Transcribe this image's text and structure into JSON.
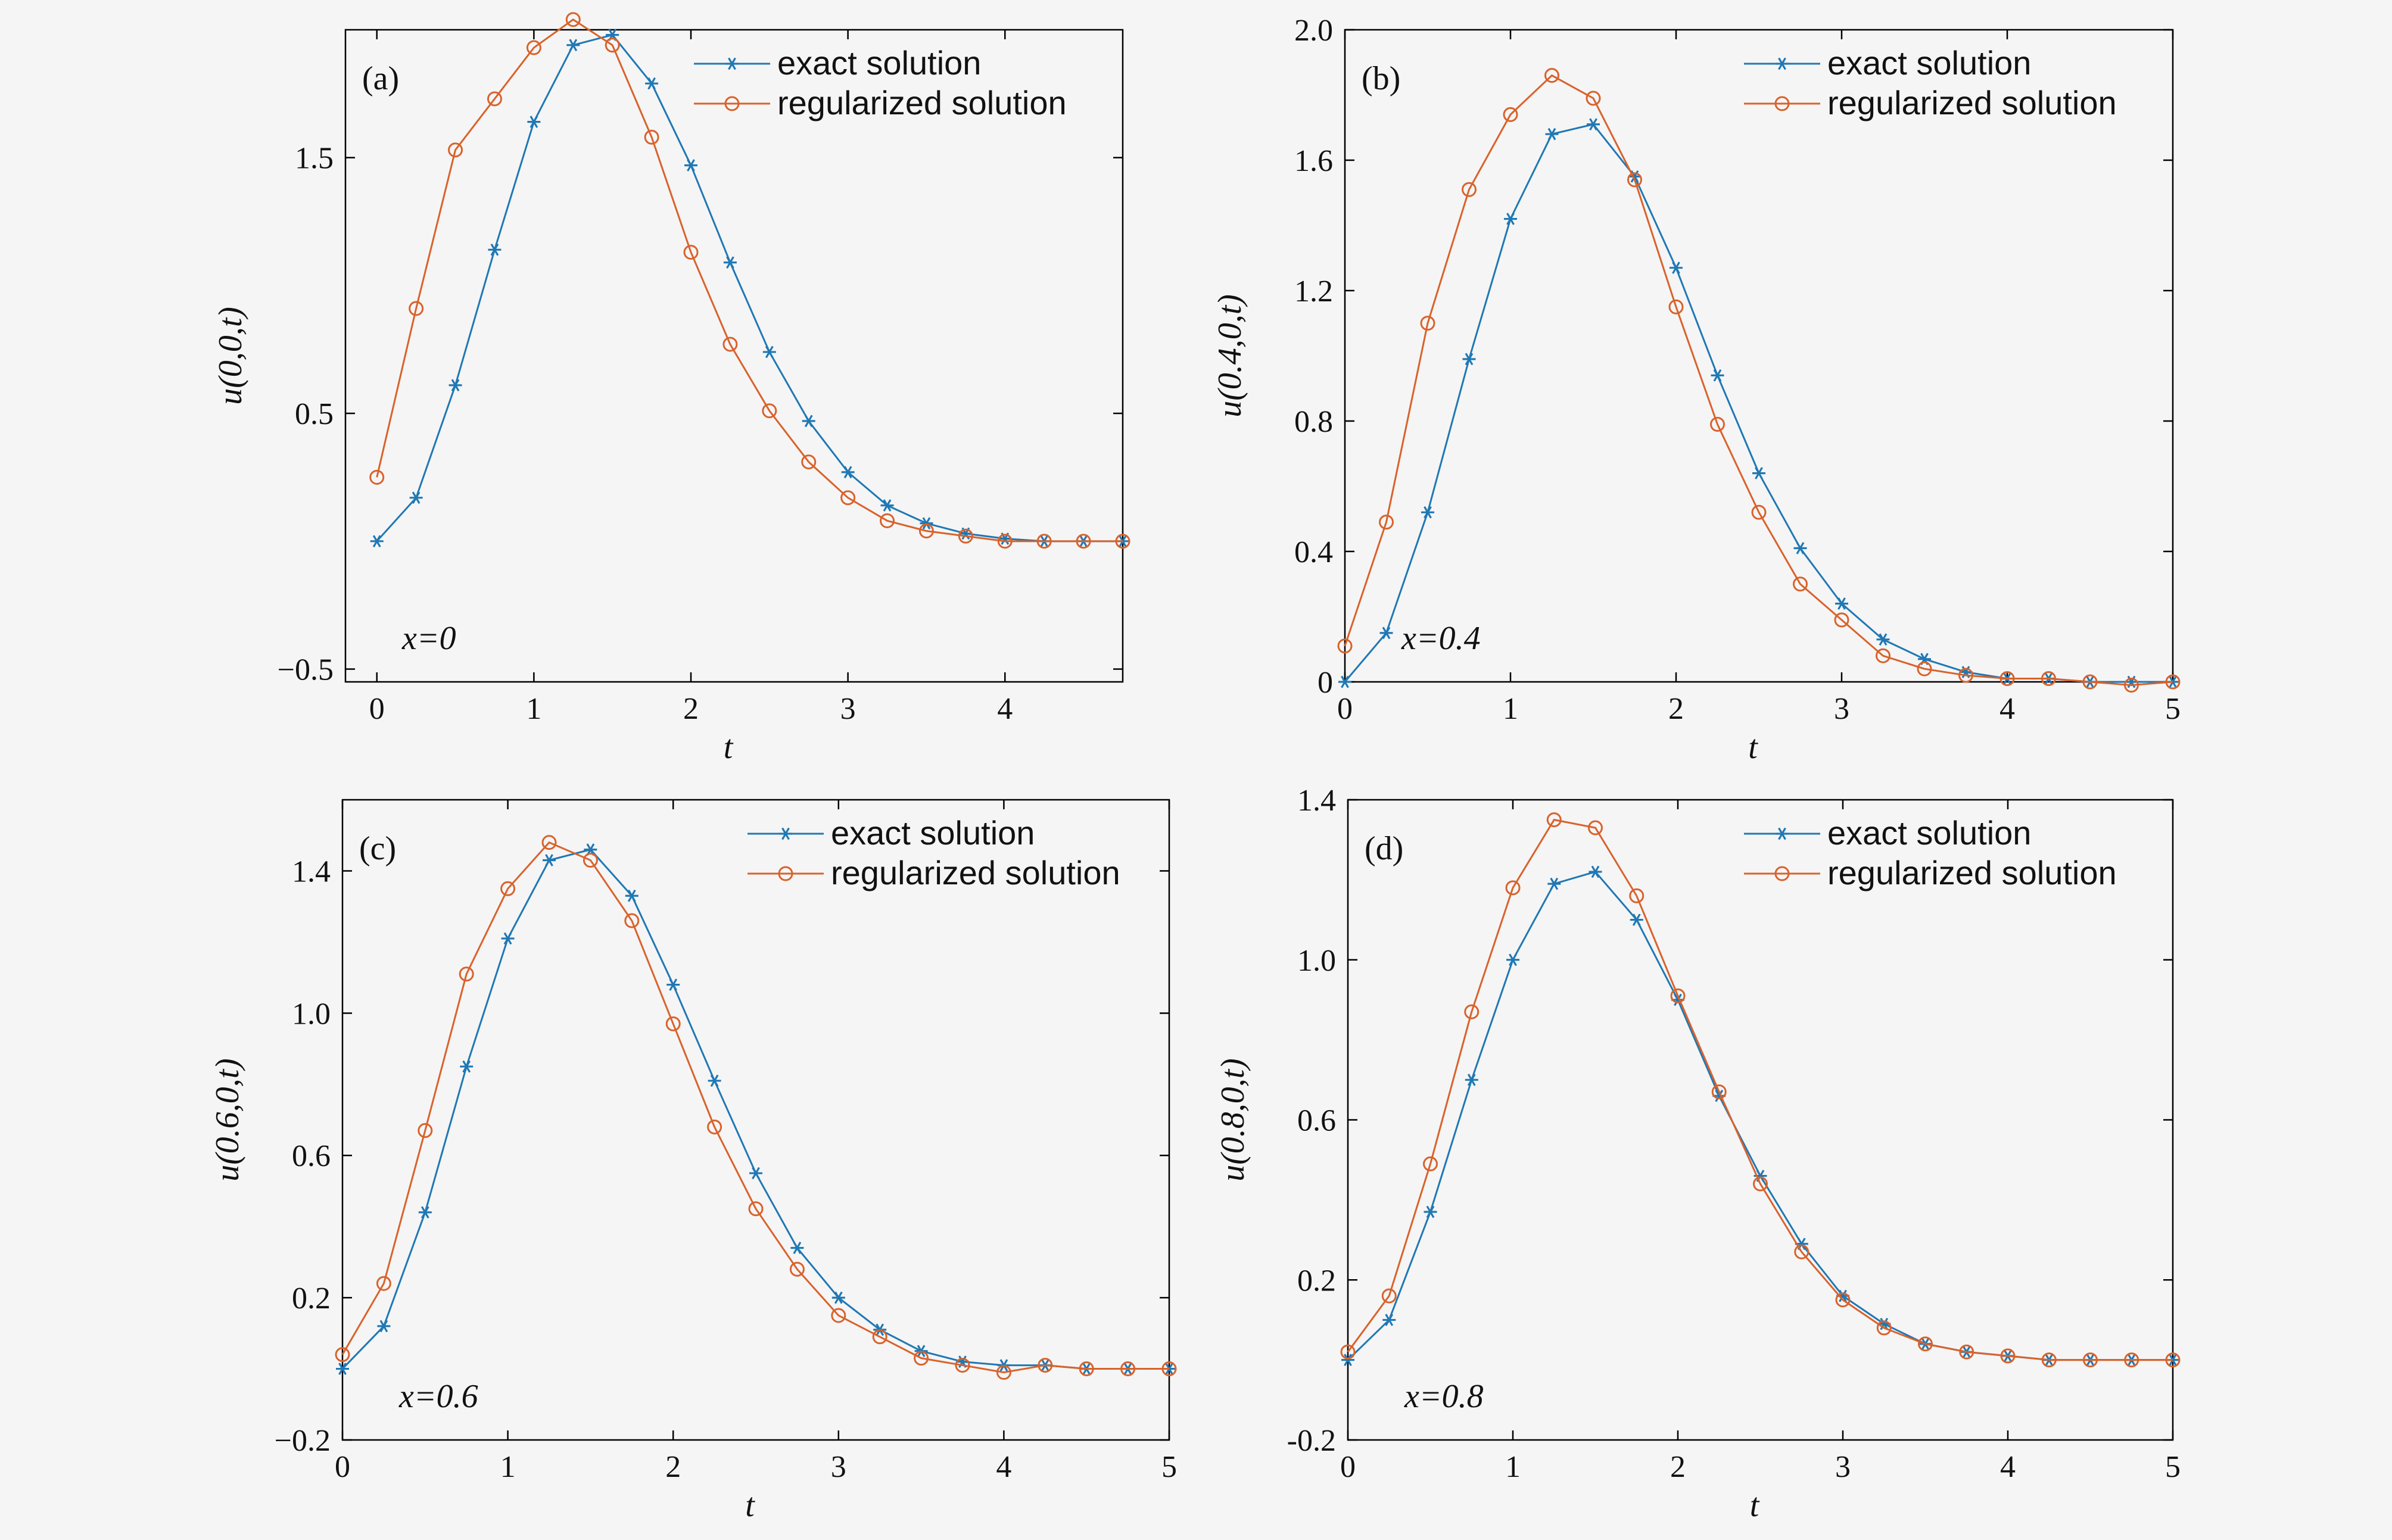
{
  "colors": {
    "exact": "#1f78b4",
    "regularized": "#d9622b",
    "axis": "#000000",
    "background": "#f5f5f5"
  },
  "legend": {
    "exact": "exact solution",
    "regularized": "regularized solution"
  },
  "chart_data": [
    {
      "type": "line",
      "panel": "(a)",
      "annotation": "x=0",
      "xlabel": "t",
      "ylabel": "u(0,0,t)",
      "xlim": [
        -0.2,
        4.75
      ],
      "ylim": [
        -0.55,
        2.0
      ],
      "xticks": [
        0,
        1,
        2,
        3,
        4
      ],
      "yticks": [
        -0.5,
        0.5,
        1.5
      ],
      "yticklabels": [
        "−0.5",
        "0.5",
        "1.5"
      ],
      "legend_position": "top-right",
      "x": [
        0,
        0.25,
        0.5,
        0.75,
        1.0,
        1.25,
        1.5,
        1.75,
        2.0,
        2.25,
        2.5,
        2.75,
        3.0,
        3.25,
        3.5,
        3.75,
        4.0,
        4.25,
        4.5,
        4.75
      ],
      "series": [
        {
          "name": "exact solution",
          "marker": "star",
          "values": [
            0.0,
            0.17,
            0.61,
            1.14,
            1.64,
            1.94,
            1.98,
            1.79,
            1.47,
            1.09,
            0.74,
            0.47,
            0.27,
            0.14,
            0.07,
            0.03,
            0.01,
            0.0,
            0.0,
            0.0
          ]
        },
        {
          "name": "regularized solution",
          "marker": "circle",
          "values": [
            0.25,
            0.91,
            1.53,
            1.73,
            1.93,
            2.04,
            1.94,
            1.58,
            1.13,
            0.77,
            0.51,
            0.31,
            0.17,
            0.08,
            0.04,
            0.02,
            0.0,
            0.0,
            0.0,
            0.0
          ]
        }
      ]
    },
    {
      "type": "line",
      "panel": "(b)",
      "annotation": "x=0.4",
      "xlabel": "t",
      "ylabel": "u(0.4,0,t)",
      "xlim": [
        0,
        5
      ],
      "ylim": [
        0,
        2.0
      ],
      "xticks": [
        0,
        1,
        2,
        3,
        4,
        5
      ],
      "yticks": [
        0,
        0.4,
        0.8,
        1.2,
        1.6,
        2.0
      ],
      "yticklabels": [
        "0",
        "0.4",
        "0.8",
        "1.2",
        "1.6",
        "2.0"
      ],
      "legend_position": "top-right",
      "x": [
        0,
        0.25,
        0.5,
        0.75,
        1.0,
        1.25,
        1.5,
        1.75,
        2.0,
        2.25,
        2.5,
        2.75,
        3.0,
        3.25,
        3.5,
        3.75,
        4.0,
        4.25,
        4.5,
        4.75,
        5.0
      ],
      "series": [
        {
          "name": "exact solution",
          "marker": "star",
          "values": [
            0.0,
            0.15,
            0.52,
            0.99,
            1.42,
            1.68,
            1.71,
            1.55,
            1.27,
            0.94,
            0.64,
            0.41,
            0.24,
            0.13,
            0.07,
            0.03,
            0.01,
            0.01,
            0.0,
            0.0,
            0.0
          ]
        },
        {
          "name": "regularized solution",
          "marker": "circle",
          "values": [
            0.11,
            0.49,
            1.1,
            1.51,
            1.74,
            1.86,
            1.79,
            1.54,
            1.15,
            0.79,
            0.52,
            0.3,
            0.19,
            0.08,
            0.04,
            0.02,
            0.01,
            0.01,
            0.0,
            -0.01,
            0.0
          ]
        }
      ]
    },
    {
      "type": "line",
      "panel": "(c)",
      "annotation": "x=0.6",
      "xlabel": "t",
      "ylabel": "u(0.6,0,t)",
      "xlim": [
        0,
        5
      ],
      "ylim": [
        -0.2,
        1.6
      ],
      "xticks": [
        0,
        1,
        2,
        3,
        4,
        5
      ],
      "yticks": [
        -0.2,
        0.2,
        0.6,
        1.0,
        1.4
      ],
      "yticklabels": [
        "−0.2",
        "0.2",
        "0.6",
        "1.0",
        "1.4"
      ],
      "legend_position": "top-right",
      "x": [
        0,
        0.25,
        0.5,
        0.75,
        1.0,
        1.25,
        1.5,
        1.75,
        2.0,
        2.25,
        2.5,
        2.75,
        3.0,
        3.25,
        3.5,
        3.75,
        4.0,
        4.25,
        4.5,
        4.75,
        5.0
      ],
      "series": [
        {
          "name": "exact solution",
          "marker": "star",
          "values": [
            0.0,
            0.12,
            0.44,
            0.85,
            1.21,
            1.43,
            1.46,
            1.33,
            1.08,
            0.81,
            0.55,
            0.34,
            0.2,
            0.11,
            0.05,
            0.02,
            0.01,
            0.01,
            0.0,
            0.0,
            0.0
          ]
        },
        {
          "name": "regularized solution",
          "marker": "circle",
          "values": [
            0.04,
            0.24,
            0.67,
            1.11,
            1.35,
            1.48,
            1.43,
            1.26,
            0.97,
            0.68,
            0.45,
            0.28,
            0.15,
            0.09,
            0.03,
            0.01,
            -0.01,
            0.01,
            0.0,
            0.0,
            0.0
          ]
        }
      ]
    },
    {
      "type": "line",
      "panel": "(d)",
      "annotation": "x=0.8",
      "xlabel": "t",
      "ylabel": "u(0.8,0,t)",
      "xlim": [
        0,
        5
      ],
      "ylim": [
        -0.2,
        1.4
      ],
      "xticks": [
        0,
        1,
        2,
        3,
        4,
        5
      ],
      "yticks": [
        -0.2,
        0.2,
        0.6,
        1.0,
        1.4
      ],
      "yticklabels": [
        "-0.2",
        "0.2",
        "0.6",
        "1.0",
        "1.4"
      ],
      "legend_position": "top-right",
      "x": [
        0.0,
        0.25,
        0.5,
        0.75,
        1.0,
        1.25,
        1.5,
        1.75,
        2.0,
        2.25,
        2.5,
        2.75,
        3.0,
        3.25,
        3.5,
        3.75,
        4.0,
        4.25,
        4.5,
        4.75,
        5.0
      ],
      "series": [
        {
          "name": "exact solution",
          "marker": "star",
          "values": [
            0.0,
            0.1,
            0.37,
            0.7,
            1.0,
            1.19,
            1.22,
            1.1,
            0.9,
            0.66,
            0.46,
            0.29,
            0.16,
            0.09,
            0.04,
            0.02,
            0.01,
            0.0,
            0.0,
            0.0,
            0.0
          ]
        },
        {
          "name": "regularized solution",
          "marker": "circle",
          "values": [
            0.02,
            0.16,
            0.49,
            0.87,
            1.18,
            1.35,
            1.33,
            1.16,
            0.91,
            0.67,
            0.44,
            0.27,
            0.15,
            0.08,
            0.04,
            0.02,
            0.01,
            0.0,
            0.0,
            0.0,
            0.0
          ]
        }
      ]
    }
  ]
}
